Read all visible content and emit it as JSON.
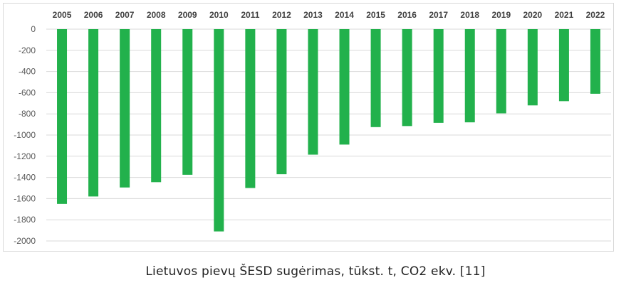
{
  "caption": "Lietuvos pievų ŠESD sugėrimas, tūkst. t, CO2 ekv. [11]",
  "chart_data": {
    "type": "bar",
    "title": "",
    "xlabel": "",
    "ylabel": "",
    "categories": [
      "2005",
      "2006",
      "2007",
      "2008",
      "2009",
      "2010",
      "2011",
      "2012",
      "2013",
      "2014",
      "2015",
      "2016",
      "2017",
      "2018",
      "2019",
      "2020",
      "2021",
      "2022"
    ],
    "values": [
      -1650,
      -1580,
      -1495,
      -1445,
      -1375,
      -1910,
      -1500,
      -1370,
      -1185,
      -1090,
      -925,
      -915,
      -885,
      -880,
      -795,
      -720,
      -680,
      -610
    ],
    "ylim": [
      -2000,
      0
    ],
    "yticks": [
      0,
      -200,
      -400,
      -600,
      -800,
      -1000,
      -1200,
      -1400,
      -1600,
      -1800,
      -2000
    ],
    "ytick_labels": [
      "0",
      "-200",
      "-400",
      "-600",
      "-800",
      "-1000",
      "-1200",
      "-1400",
      "-1600",
      "-1800",
      "-2000"
    ],
    "category_axis_position": "top",
    "grid": true,
    "legend": "none",
    "bar_color": "#22b14c",
    "grid_color": "#d9d9d9"
  }
}
